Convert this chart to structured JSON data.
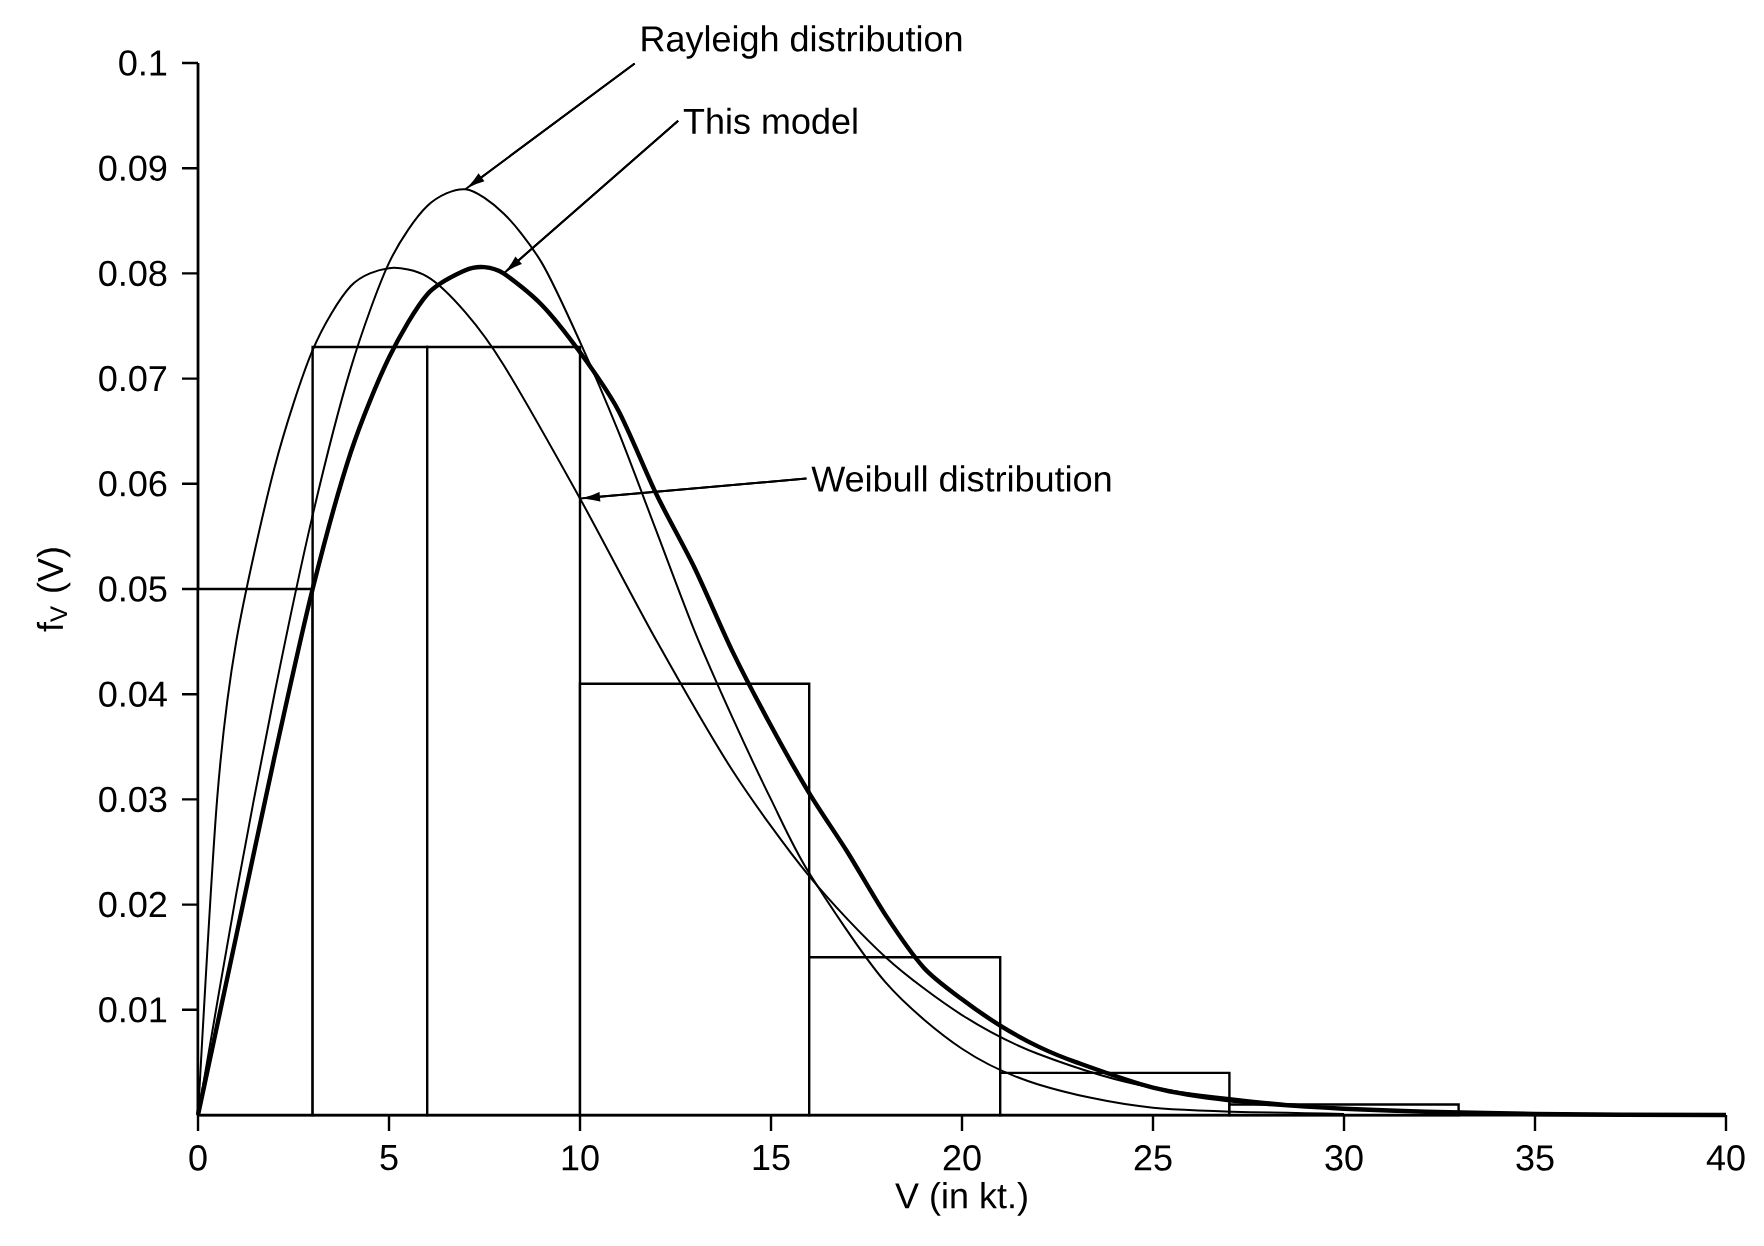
{
  "chart_data": {
    "type": "histogram",
    "xlabel": "V (in kt.)",
    "ylabel": "f$_{V}$ (V)",
    "bins": [
      0,
      3,
      6,
      10,
      16,
      21,
      27,
      33
    ],
    "values": [
      0.05,
      0.073,
      0.073,
      0.041,
      0.015,
      0.004,
      0.001
    ],
    "color": "#000000",
    "series": [
      {
        "type": "line",
        "color": "#000000",
        "x": [
          0,
          1,
          2,
          3,
          4,
          5,
          6,
          7,
          8,
          9,
          10,
          11,
          12,
          13,
          14,
          15,
          16,
          18,
          20,
          22,
          25,
          30
        ],
        "values": [
          0,
          0.021,
          0.04,
          0.057,
          0.071,
          0.081,
          0.0864,
          0.088,
          0.0857,
          0.081,
          0.0735,
          0.065,
          0.0555,
          0.046,
          0.0377,
          0.03,
          0.023,
          0.0126,
          0.0063,
          0.0029,
          0.0007,
          0.0001
        ]
      },
      {
        "type": "line",
        "color": "#000000",
        "x": [
          0,
          0.5,
          1,
          2,
          3,
          4,
          5,
          6,
          7,
          8,
          10,
          12,
          14,
          16,
          18,
          20,
          22,
          25,
          30,
          35
        ],
        "values": [
          0,
          0.03,
          0.045,
          0.0615,
          0.0727,
          0.0788,
          0.0805,
          0.0797,
          0.0763,
          0.0713,
          0.0586,
          0.0451,
          0.0327,
          0.0227,
          0.015,
          0.0095,
          0.0058,
          0.0026,
          0.0006,
          0.0001
        ]
      },
      {
        "type": "line",
        "color": "#000000",
        "x": [
          0,
          1,
          2,
          3,
          4,
          5,
          6,
          7,
          7.5,
          8,
          9,
          10,
          11,
          12,
          13,
          14,
          15,
          16,
          17,
          18,
          19,
          20,
          21,
          22,
          23,
          25,
          27,
          30,
          35,
          40
        ],
        "values": [
          0,
          0.017,
          0.034,
          0.05,
          0.063,
          0.072,
          0.078,
          0.0803,
          0.0806,
          0.08,
          0.077,
          0.0725,
          0.067,
          0.059,
          0.052,
          0.044,
          0.037,
          0.0306,
          0.025,
          0.019,
          0.014,
          0.011,
          0.0085,
          0.0065,
          0.005,
          0.0026,
          0.0014,
          0.0006,
          0.0001,
          0
        ]
      }
    ],
    "annotations": [
      {
        "text": "Rayleigh distribution",
        "x": 7,
        "y": 0.088
      },
      {
        "text": "This model",
        "x": 8,
        "y": 0.08
      },
      {
        "text": "Weibull distribution",
        "x": 10,
        "y": 0.0586
      }
    ],
    "xlim": [
      0,
      40
    ],
    "ylim": [
      0,
      0.1
    ],
    "xticks": [
      0,
      5,
      10,
      15,
      20,
      25,
      30,
      35,
      40
    ],
    "yticks": [
      0.01,
      0.02,
      0.03,
      0.04,
      0.05,
      0.06,
      0.07,
      0.08,
      0.09,
      0.1
    ]
  }
}
